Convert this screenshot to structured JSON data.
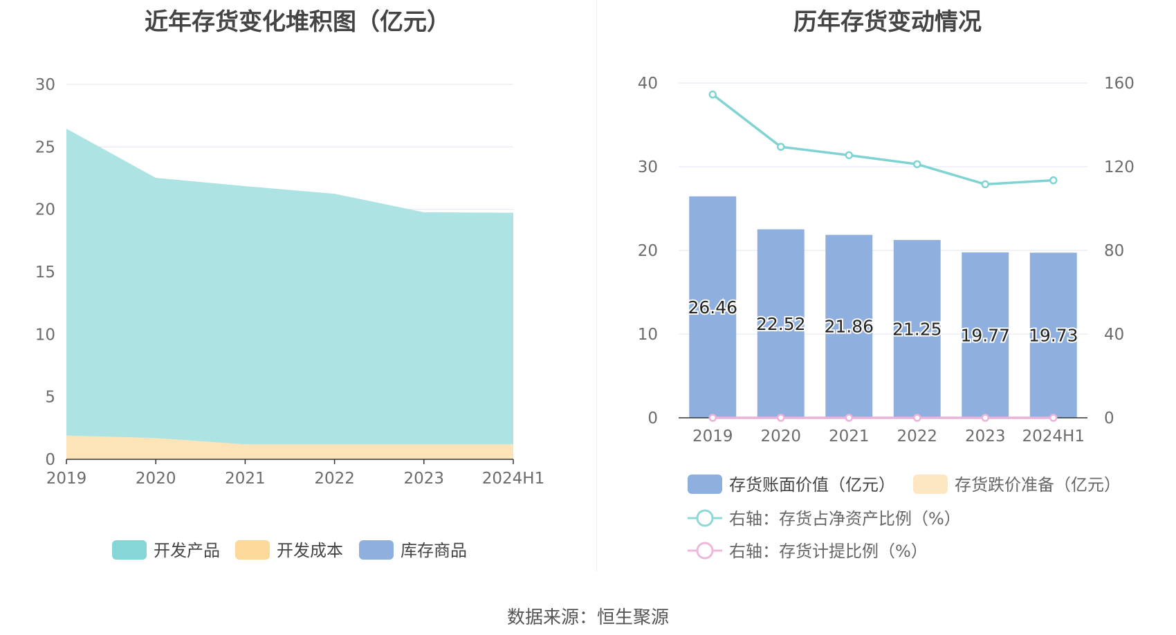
{
  "left_chart": {
    "title": "近年存货变化堆积图（亿元）",
    "legend": [
      {
        "label": "开发产品",
        "color": "#86d6d8"
      },
      {
        "label": "开发成本",
        "color": "#fcd89a"
      },
      {
        "label": "库存商品",
        "color": "#8fb0de"
      }
    ]
  },
  "right_chart": {
    "title": "历年存货变动情况",
    "legend": [
      {
        "label": "存货账面价值（亿元）",
        "color": "#8fb0de"
      },
      {
        "label": "存货跌价准备（亿元）",
        "color": "#fde6c2"
      },
      {
        "label": "右轴：存货占净资产比例（%）",
        "color": "#8ed8d8"
      },
      {
        "label": "右轴：存货计提比例（%）",
        "color": "#f0b6dc"
      }
    ]
  },
  "source": "数据来源：恒生聚源",
  "chart_data": [
    {
      "type": "area",
      "title": "近年存货变化堆积图（亿元）",
      "categories": [
        "2019",
        "2020",
        "2021",
        "2022",
        "2023",
        "2024H1"
      ],
      "stacked": true,
      "ylim": [
        0,
        30
      ],
      "yticks": [
        0,
        5,
        10,
        15,
        20,
        25,
        30
      ],
      "grid": true,
      "legend_position": "bottom",
      "series": [
        {
          "name": "开发成本",
          "color": "#fde3b8",
          "values": [
            1.9,
            1.7,
            1.2,
            1.2,
            1.2,
            1.2
          ]
        },
        {
          "name": "开发产品",
          "color": "#aee3e4",
          "values": [
            24.56,
            20.82,
            20.66,
            20.05,
            18.57,
            18.53
          ]
        },
        {
          "name": "库存商品",
          "color": "#8fb0de",
          "values": [
            0,
            0,
            0,
            0,
            0,
            0
          ]
        }
      ]
    },
    {
      "type": "bar",
      "title": "历年存货变动情况",
      "categories": [
        "2019",
        "2020",
        "2021",
        "2022",
        "2023",
        "2024H1"
      ],
      "ylim": [
        0,
        40
      ],
      "yticks": [
        0,
        10,
        20,
        30,
        40
      ],
      "y2lim": [
        0,
        160
      ],
      "y2ticks": [
        0,
        40,
        80,
        120,
        160
      ],
      "grid": true,
      "legend_position": "bottom",
      "series": [
        {
          "name": "存货账面价值（亿元）",
          "type": "bar",
          "axis": "left",
          "color": "#8fb0de",
          "values": [
            26.46,
            22.52,
            21.86,
            21.25,
            19.77,
            19.73
          ],
          "labels": [
            "26.46",
            "22.52",
            "21.86",
            "21.25",
            "19.77",
            "19.73"
          ]
        },
        {
          "name": "存货跌价准备（亿元）",
          "type": "bar",
          "axis": "left",
          "color": "#fde6c2",
          "values": [
            0,
            0,
            0,
            0,
            0,
            0
          ]
        },
        {
          "name": "右轴：存货占净资产比例（%）",
          "type": "line",
          "axis": "right",
          "color": "#7fd3d3",
          "values": [
            154.5,
            129.5,
            125.5,
            121.2,
            111.6,
            113.5
          ]
        },
        {
          "name": "右轴：存货计提比例（%）",
          "type": "line",
          "axis": "right",
          "color": "#eab3d9",
          "values": [
            0,
            0,
            0,
            0,
            0,
            0
          ]
        }
      ]
    }
  ]
}
